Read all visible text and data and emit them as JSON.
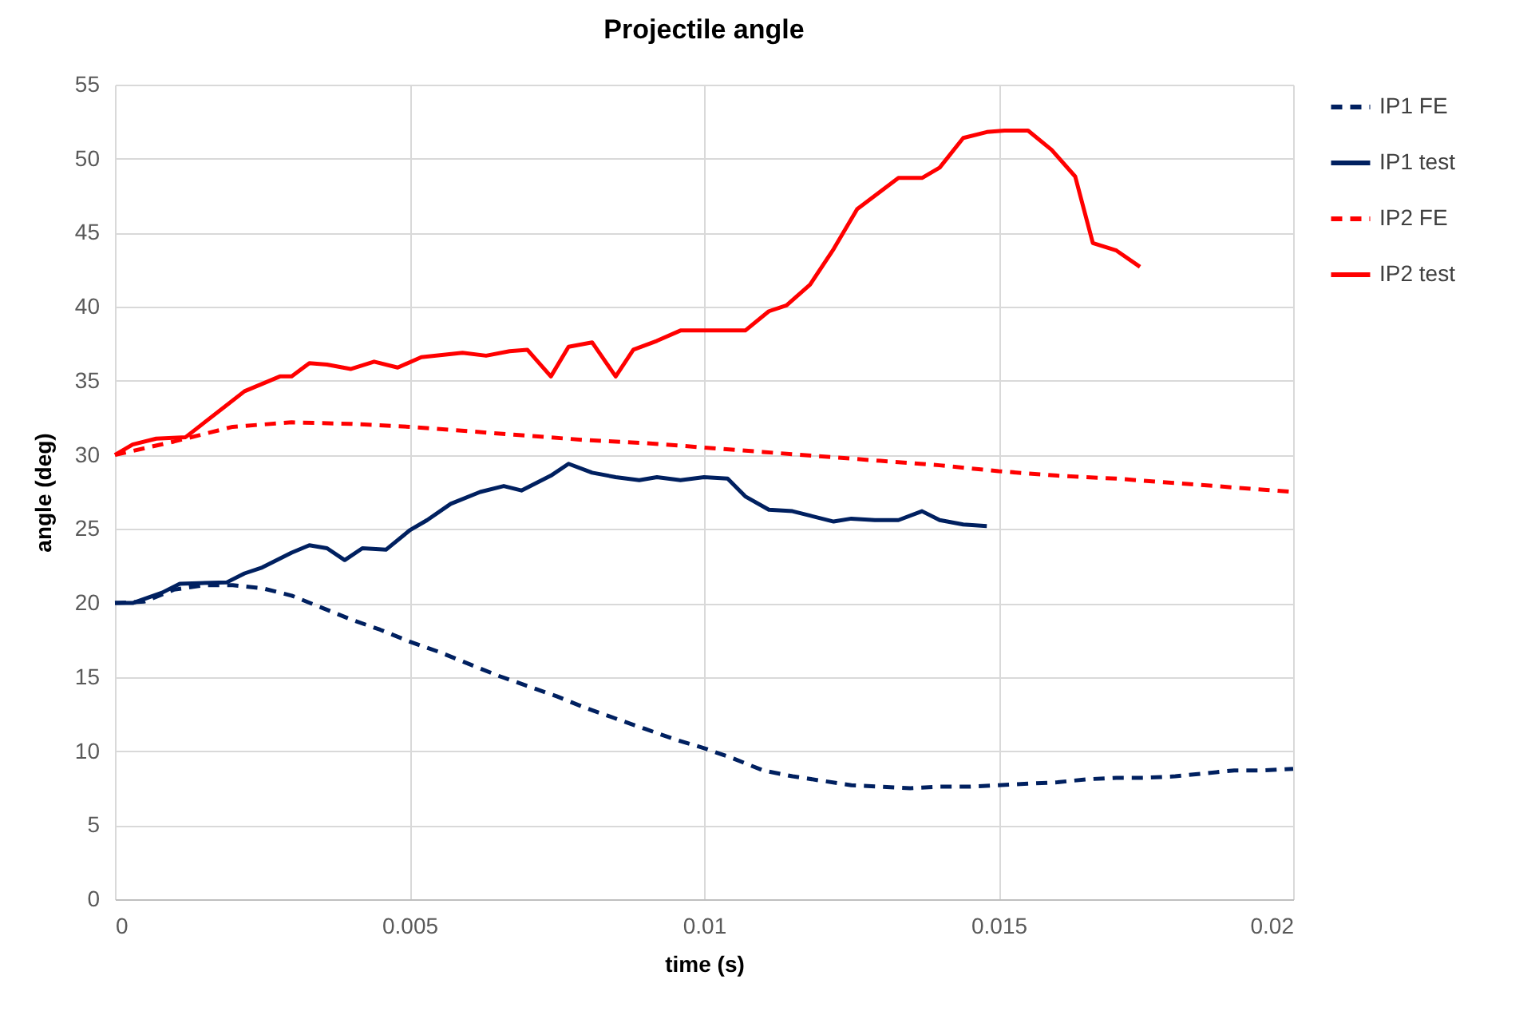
{
  "chart_data": {
    "type": "line",
    "title": "Projectile angle",
    "xlabel": "time (s)",
    "ylabel": "angle (deg)",
    "xlim": [
      0,
      0.02
    ],
    "xticks": [
      0,
      0.005,
      0.01,
      0.015,
      0.02
    ],
    "ylim": [
      0,
      55
    ],
    "yticks": [
      0,
      5,
      10,
      15,
      20,
      25,
      30,
      35,
      40,
      45,
      50,
      55
    ],
    "grid": true,
    "legend": "right",
    "marker": "none",
    "series": [
      {
        "name": "IP1 FE",
        "color": "#002060",
        "line_style": "dashed",
        "x": [
          0,
          0.0005,
          0.001,
          0.0015,
          0.002,
          0.0025,
          0.003,
          0.0035,
          0.004,
          0.0045,
          0.005,
          0.0055,
          0.006,
          0.0065,
          0.007,
          0.0075,
          0.008,
          0.0085,
          0.009,
          0.0095,
          0.01,
          0.0105,
          0.011,
          0.0115,
          0.012,
          0.0125,
          0.013,
          0.0135,
          0.014,
          0.0145,
          0.015,
          0.0155,
          0.016,
          0.0165,
          0.017,
          0.0175,
          0.018,
          0.0185,
          0.019,
          0.0195,
          0.02
        ],
        "values": [
          20,
          20.1,
          20.9,
          21.2,
          21.2,
          21.0,
          20.5,
          19.7,
          18.9,
          18.2,
          17.4,
          16.7,
          15.9,
          15.1,
          14.4,
          13.7,
          12.9,
          12.2,
          11.5,
          10.8,
          10.2,
          9.5,
          8.7,
          8.3,
          8.0,
          7.7,
          7.6,
          7.5,
          7.6,
          7.6,
          7.7,
          7.8,
          7.9,
          8.1,
          8.2,
          8.2,
          8.3,
          8.5,
          8.7,
          8.7,
          8.8
        ]
      },
      {
        "name": "IP1 test",
        "color": "#002060",
        "line_style": "solid",
        "x": [
          0,
          0.0003,
          0.0008,
          0.0011,
          0.0019,
          0.0022,
          0.0025,
          0.003,
          0.0033,
          0.0036,
          0.0039,
          0.0042,
          0.0046,
          0.005,
          0.0053,
          0.0057,
          0.0062,
          0.0066,
          0.0069,
          0.0074,
          0.0077,
          0.0081,
          0.0085,
          0.0089,
          0.0092,
          0.0096,
          0.01,
          0.0104,
          0.0107,
          0.0111,
          0.0115,
          0.0118,
          0.0122,
          0.0125,
          0.0129,
          0.0133,
          0.0137,
          0.014,
          0.0144,
          0.0148
        ],
        "values": [
          20,
          20.0,
          20.7,
          21.3,
          21.4,
          22.0,
          22.4,
          23.4,
          23.9,
          23.7,
          22.9,
          23.7,
          23.6,
          24.9,
          25.6,
          26.7,
          27.5,
          27.9,
          27.6,
          28.6,
          29.4,
          28.8,
          28.5,
          28.3,
          28.5,
          28.3,
          28.5,
          28.4,
          27.2,
          26.3,
          26.2,
          25.9,
          25.5,
          25.7,
          25.6,
          25.6,
          26.2,
          25.6,
          25.3,
          25.2
        ]
      },
      {
        "name": "IP2 FE",
        "color": "#ff0000",
        "line_style": "dashed",
        "x": [
          0,
          0.001,
          0.002,
          0.003,
          0.004,
          0.005,
          0.006,
          0.007,
          0.008,
          0.009,
          0.01,
          0.011,
          0.012,
          0.013,
          0.014,
          0.015,
          0.016,
          0.017,
          0.018,
          0.019,
          0.02
        ],
        "values": [
          30,
          30.9,
          31.9,
          32.2,
          32.1,
          31.9,
          31.6,
          31.3,
          31.0,
          30.8,
          30.5,
          30.2,
          29.9,
          29.6,
          29.3,
          28.9,
          28.6,
          28.4,
          28.1,
          27.8,
          27.5
        ]
      },
      {
        "name": "IP2 test",
        "color": "#ff0000",
        "line_style": "solid",
        "x": [
          0,
          0.0003,
          0.0007,
          0.0012,
          0.0022,
          0.0028,
          0.003,
          0.0033,
          0.0036,
          0.004,
          0.0044,
          0.0048,
          0.0052,
          0.0059,
          0.0063,
          0.0067,
          0.007,
          0.0074,
          0.0077,
          0.0081,
          0.0085,
          0.0088,
          0.0092,
          0.0096,
          0.0104,
          0.0107,
          0.0111,
          0.0114,
          0.0118,
          0.0122,
          0.0126,
          0.0133,
          0.0137,
          0.014,
          0.0144,
          0.0148,
          0.0151,
          0.0155,
          0.0159,
          0.0163,
          0.0166,
          0.017,
          0.0174
        ],
        "values": [
          30,
          30.7,
          31.1,
          31.2,
          34.3,
          35.3,
          35.3,
          36.2,
          36.1,
          35.8,
          36.3,
          35.9,
          36.6,
          36.9,
          36.7,
          37.0,
          37.1,
          35.3,
          37.3,
          37.6,
          35.3,
          37.1,
          37.7,
          38.4,
          38.4,
          38.4,
          39.7,
          40.1,
          41.5,
          43.9,
          46.6,
          48.7,
          48.7,
          49.4,
          51.4,
          51.8,
          51.9,
          51.9,
          50.6,
          48.8,
          44.3,
          43.8,
          42.7
        ]
      }
    ]
  }
}
